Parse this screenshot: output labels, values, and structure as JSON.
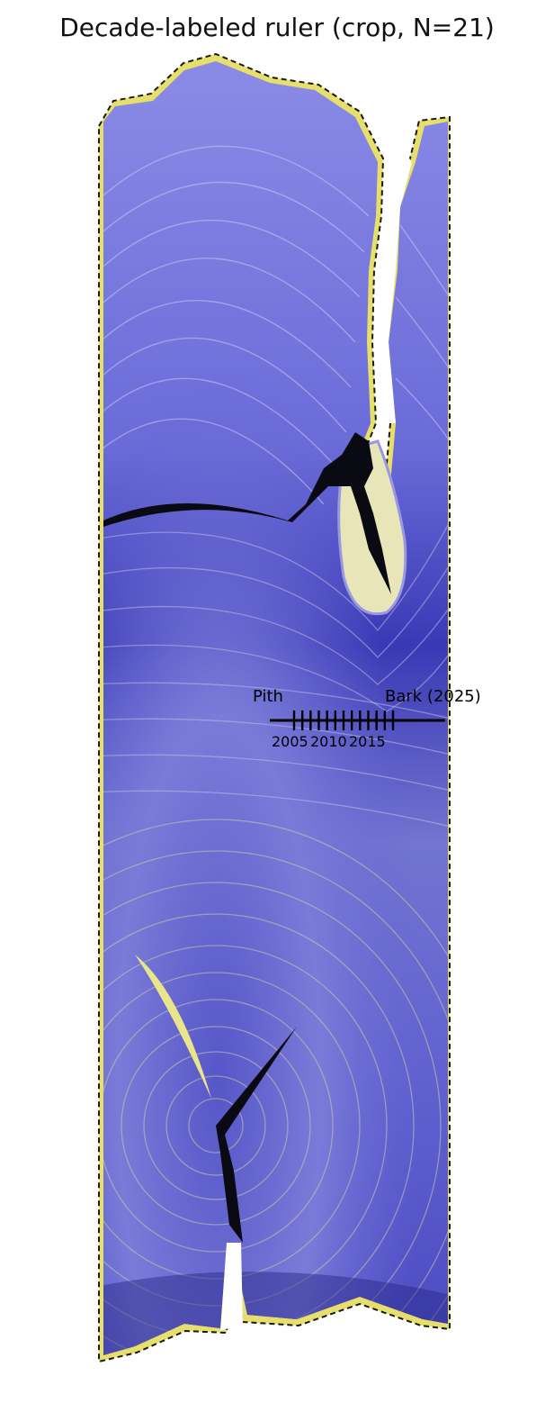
{
  "title": "Decade-labeled ruler (crop, N=21)",
  "ruler": {
    "start_label": "Pith",
    "end_label": "Bark (2025)",
    "tick_labels": [
      "2005",
      "2010",
      "2015"
    ],
    "ring_years": [
      2004,
      2005,
      2006,
      2007,
      2008,
      2009,
      2010,
      2011,
      2012,
      2013,
      2014,
      2015,
      2016
    ]
  },
  "colors": {
    "wood": "#6e6fd6",
    "wood_dark": "#2b2aa8",
    "rim": "#e8e26a",
    "crack": "#0a0a12",
    "ruler": "#000000"
  }
}
